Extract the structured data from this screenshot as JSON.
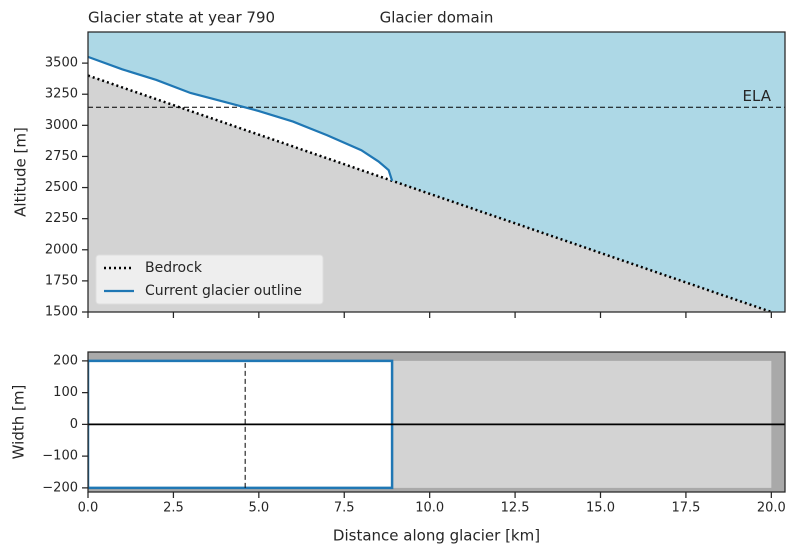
{
  "chart_data": [
    {
      "type": "line",
      "title": "Glacier state at year 790",
      "subtitle": "Glacier domain",
      "ylabel": "Altitude [m]",
      "x": [
        0,
        1,
        2,
        3,
        4,
        5,
        6,
        7,
        8,
        8.5,
        8.8,
        8.9,
        12,
        16,
        20
      ],
      "series": [
        {
          "name": "Bedrock",
          "color": "#000000",
          "values": [
            3400,
            3305,
            3210,
            3115,
            3020,
            2925,
            2830,
            2735,
            2640,
            2592.5,
            2564,
            2554.5,
            2260,
            1880,
            1500
          ]
        },
        {
          "name": "Current glacier outline",
          "color": "#1f77b4",
          "values": [
            3550,
            3450,
            3365,
            3260,
            3188,
            3115,
            3030,
            2920,
            2800,
            2710,
            2640,
            2554.5,
            null,
            null,
            null
          ]
        }
      ],
      "ela": {
        "label": "ELA",
        "value": 3145
      },
      "xlim": [
        0,
        20.4
      ],
      "xticks": [
        0,
        2.5,
        5,
        7.5,
        10,
        12.5,
        15,
        17.5,
        20
      ],
      "ylim": [
        1500,
        3750
      ],
      "yticks": [
        1500,
        1750,
        2000,
        2250,
        2500,
        2750,
        3000,
        3250,
        3500
      ],
      "legend": "lower left"
    },
    {
      "type": "width",
      "xlabel": "Distance along glacier [km]",
      "ylabel": "Width [m]",
      "domain_x": [
        0,
        20
      ],
      "domain_y": [
        -200,
        200
      ],
      "glacier_x": [
        0,
        8.9
      ],
      "glacier_y": [
        -200,
        200
      ],
      "glacier_color": "#1f77b4",
      "ela_x": 4.6,
      "xlim": [
        0,
        20.4
      ],
      "xticks": [
        {
          "value": 0,
          "label": "0.0"
        },
        {
          "value": 2.5,
          "label": "2.5"
        },
        {
          "value": 5,
          "label": "5.0"
        },
        {
          "value": 7.5,
          "label": "7.5"
        },
        {
          "value": 10,
          "label": "10.0"
        },
        {
          "value": 12.5,
          "label": "12.5"
        },
        {
          "value": 15,
          "label": "15.0"
        },
        {
          "value": 17.5,
          "label": "17.5"
        },
        {
          "value": 20,
          "label": "20.0"
        }
      ],
      "ylim": [
        -213,
        228
      ],
      "yticks": [
        {
          "value": -200,
          "label": "−200"
        },
        {
          "value": -100,
          "label": "−100"
        },
        0,
        100,
        200
      ]
    }
  ]
}
